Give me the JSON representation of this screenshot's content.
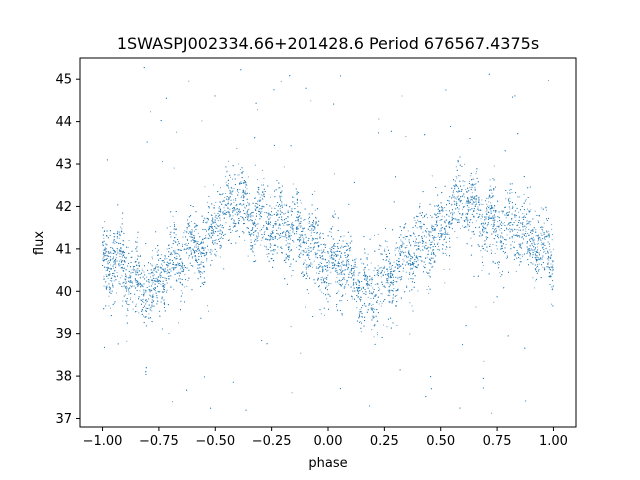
{
  "chart_data": {
    "type": "scatter",
    "title": "1SWASPJ002334.66+201428.6 Period 676567.4375s",
    "xlabel": "phase",
    "ylabel": "flux",
    "xlim": [
      -1.1,
      1.1
    ],
    "ylim": [
      36.8,
      45.5
    ],
    "x_ticks": [
      -1.0,
      -0.75,
      -0.5,
      -0.25,
      0.0,
      0.25,
      0.5,
      0.75,
      1.0
    ],
    "x_tick_labels": [
      "−1.00",
      "−0.75",
      "−0.50",
      "−0.25",
      "0.00",
      "0.25",
      "0.50",
      "0.75",
      "1.00"
    ],
    "y_ticks": [
      37,
      38,
      39,
      40,
      41,
      42,
      43,
      44,
      45
    ],
    "y_tick_labels": [
      "37",
      "38",
      "39",
      "40",
      "41",
      "42",
      "43",
      "44",
      "45"
    ],
    "grid": false,
    "marker_color": "#1f77b4",
    "series": [
      {
        "x": [
          -1.0,
          -0.95,
          -0.9,
          -0.85,
          -0.8,
          -0.75,
          -0.7,
          -0.65,
          -0.6,
          -0.55,
          -0.5,
          -0.45,
          -0.4,
          -0.35,
          -0.3,
          -0.25,
          -0.2,
          -0.15,
          -0.1,
          -0.05,
          0.0,
          0.05,
          0.1,
          0.15,
          0.2,
          0.25,
          0.3,
          0.35,
          0.4,
          0.45,
          0.5,
          0.55,
          0.6,
          0.65,
          0.7,
          0.75,
          0.8,
          0.85,
          0.9,
          0.95,
          1.0
        ],
        "y": [
          40.6,
          40.8,
          40.5,
          40.2,
          39.9,
          40.3,
          40.7,
          40.9,
          41.1,
          41.0,
          41.5,
          41.9,
          42.1,
          41.8,
          41.7,
          41.5,
          41.6,
          41.4,
          41.2,
          40.9,
          40.6,
          40.7,
          40.3,
          40.0,
          39.9,
          40.3,
          40.5,
          40.8,
          41.0,
          41.2,
          41.5,
          41.9,
          42.2,
          41.9,
          41.7,
          41.5,
          41.5,
          41.4,
          41.2,
          41.0,
          40.7
        ]
      }
    ]
  }
}
